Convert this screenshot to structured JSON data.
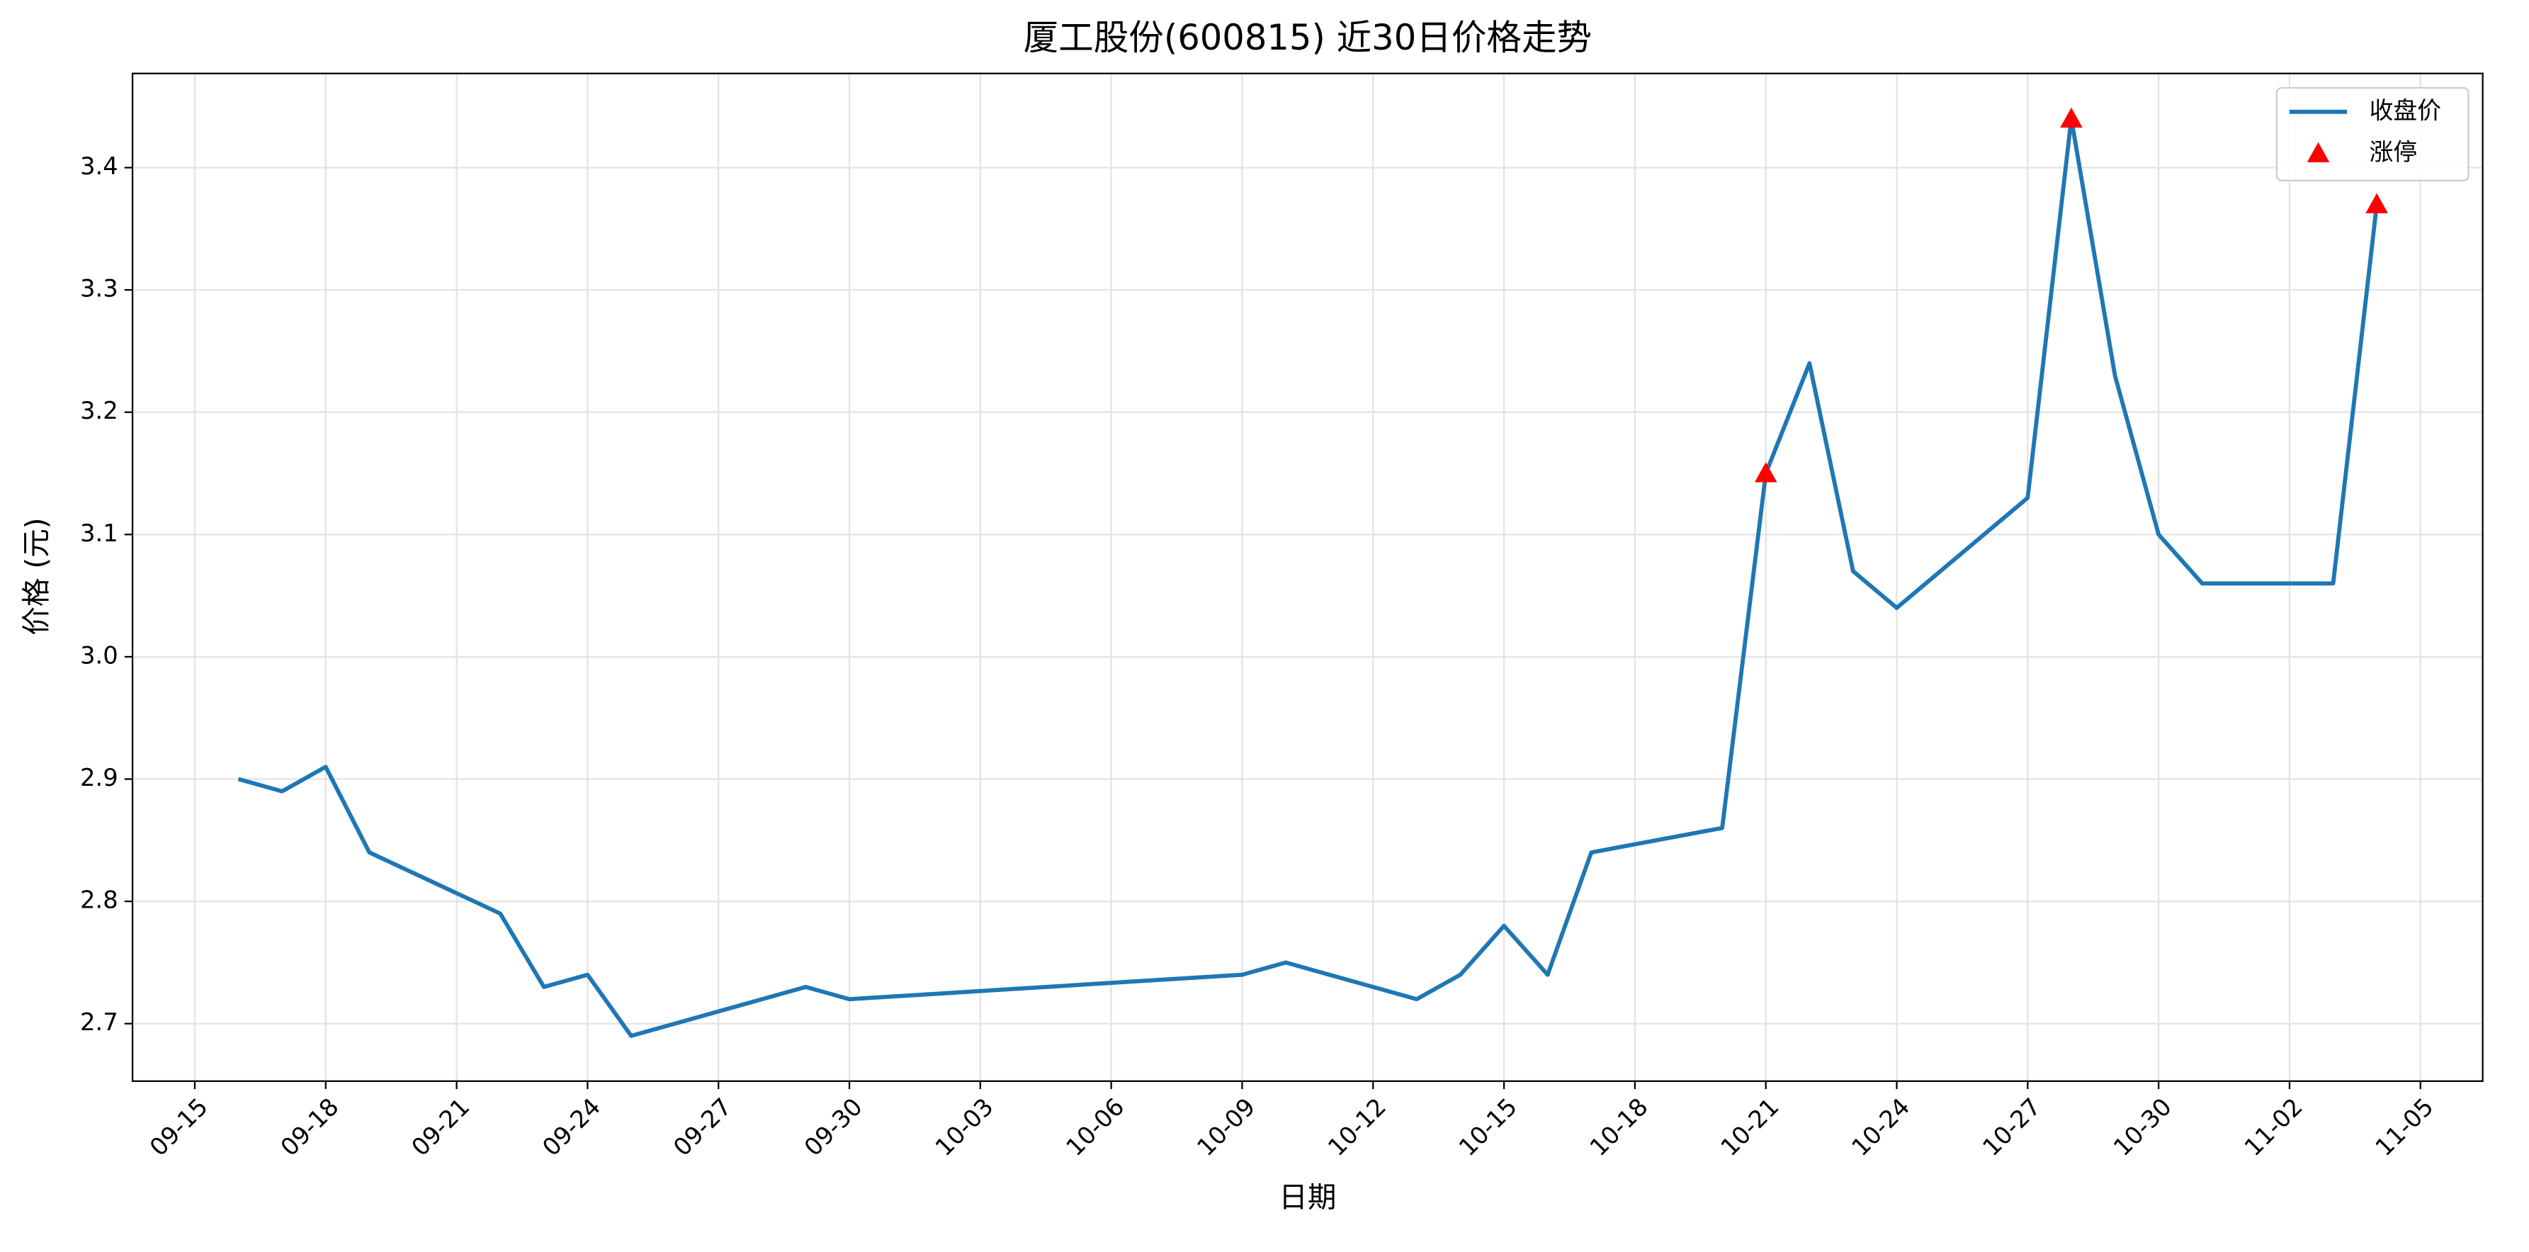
{
  "chart_data": {
    "type": "line",
    "title": "厦工股份(600815) 近30日价格走势",
    "x_label": "日期",
    "y_label": "价格 (元)",
    "series": [
      {
        "name": "收盘价",
        "type": "line",
        "color": "#1f77b4",
        "x": [
          "09-16",
          "09-17",
          "09-18",
          "09-19",
          "09-22",
          "09-23",
          "09-24",
          "09-25",
          "09-29",
          "09-30",
          "10-09",
          "10-10",
          "10-13",
          "10-14",
          "10-15",
          "10-16",
          "10-17",
          "10-20",
          "10-21",
          "10-22",
          "10-23",
          "10-24",
          "10-27",
          "10-28",
          "10-29",
          "10-30",
          "10-31",
          "11-03",
          "11-04"
        ],
        "values": [
          2.9,
          2.89,
          2.91,
          2.84,
          2.79,
          2.73,
          2.74,
          2.69,
          2.73,
          2.72,
          2.74,
          2.75,
          2.72,
          2.74,
          2.78,
          2.74,
          2.84,
          2.86,
          3.15,
          3.24,
          3.07,
          3.04,
          3.13,
          3.44,
          3.23,
          3.1,
          3.06,
          3.06,
          3.37
        ]
      },
      {
        "name": "涨停",
        "type": "scatter",
        "marker": "triangle",
        "color": "#ff0000",
        "x": [
          "10-21",
          "10-28",
          "11-04"
        ],
        "values": [
          3.15,
          3.44,
          3.37
        ]
      }
    ],
    "xlim": [
      "09-15",
      "11-05"
    ],
    "xticks": [
      "09-15",
      "09-18",
      "09-21",
      "09-24",
      "09-27",
      "09-30",
      "10-03",
      "10-06",
      "10-09",
      "10-12",
      "10-15",
      "10-18",
      "10-21",
      "10-24",
      "10-27",
      "10-30",
      "11-02",
      "11-05"
    ],
    "ylim": [
      2.653,
      3.477
    ],
    "yticks": [
      2.7,
      2.8,
      2.9,
      {
        "value": 3,
        "label": "3.0"
      },
      3.1,
      3.2,
      3.3,
      3.4
    ],
    "grid": true,
    "legend": "upper right"
  }
}
